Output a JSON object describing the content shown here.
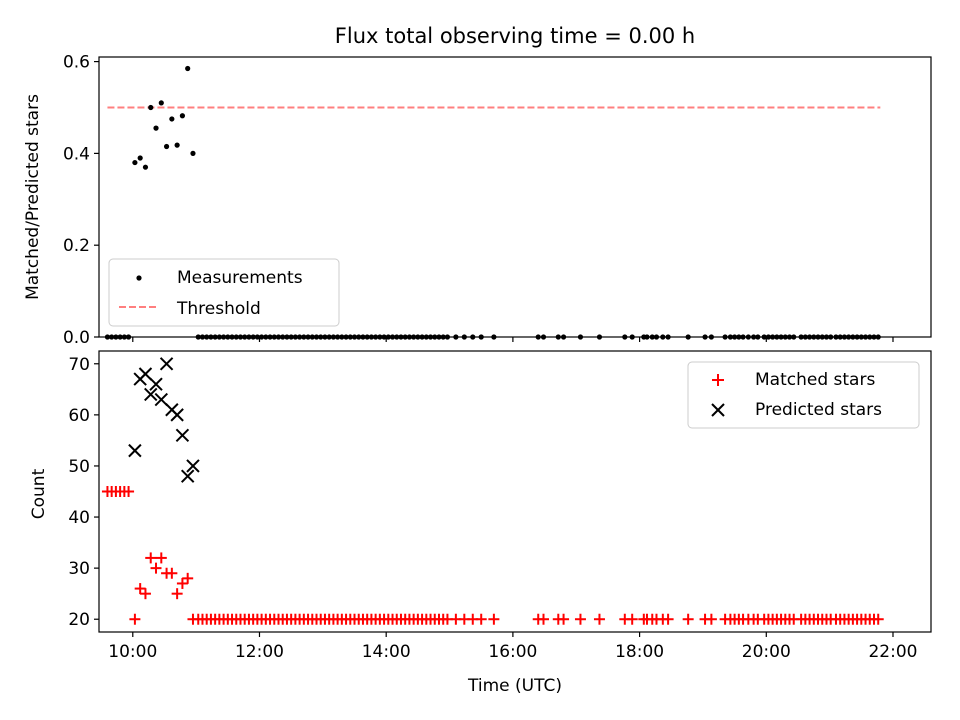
{
  "figure": {
    "title": "Flux total observing time = 0.00 h",
    "xlabel": "Time (UTC)"
  },
  "colors": {
    "measurements": "#000000",
    "threshold": "#ff7f7f",
    "matched": "#ff0000",
    "predicted": "#000000"
  },
  "chart_data": [
    {
      "type": "scatter",
      "panel": "top",
      "ylabel": "Matched/Predicted stars",
      "xlim": [
        "09:28",
        "22:36"
      ],
      "ylim": [
        0,
        0.61
      ],
      "yticks": [
        0.0,
        0.2,
        0.4,
        0.6
      ],
      "ytick_labels": [
        "0.0",
        "0.2",
        "0.4",
        "0.6"
      ],
      "legend": {
        "placement": "lower-left",
        "entries": [
          "Measurements",
          "Threshold"
        ]
      },
      "series": [
        {
          "name": "Measurements",
          "marker": "dot",
          "points": [
            [
              "10:02",
              0.38
            ],
            [
              "10:07",
              0.39
            ],
            [
              "10:12",
              0.37
            ],
            [
              "10:17",
              0.5
            ],
            [
              "10:22",
              0.455
            ],
            [
              "10:27",
              0.51
            ],
            [
              "10:32",
              0.415
            ],
            [
              "10:37",
              0.475
            ],
            [
              "10:42",
              0.418
            ],
            [
              "10:47",
              0.482
            ],
            [
              "10:52",
              0.585
            ],
            [
              "10:57",
              0.4
            ]
          ],
          "zero_times": [
            "09:36",
            "09:40",
            "09:44",
            "09:48",
            "09:52",
            "09:56",
            "11:02",
            "11:06",
            "11:10",
            "11:14",
            "11:18",
            "11:22",
            "11:26",
            "11:30",
            "11:34",
            "11:38",
            "11:42",
            "11:46",
            "11:50",
            "11:54",
            "11:58",
            "12:02",
            "12:06",
            "12:10",
            "12:14",
            "12:18",
            "12:22",
            "12:26",
            "12:30",
            "12:34",
            "12:38",
            "12:42",
            "12:46",
            "12:50",
            "12:54",
            "12:58",
            "13:02",
            "13:06",
            "13:10",
            "13:14",
            "13:18",
            "13:22",
            "13:26",
            "13:30",
            "13:34",
            "13:38",
            "13:42",
            "13:46",
            "13:50",
            "13:54",
            "13:58",
            "14:02",
            "14:06",
            "14:10",
            "14:14",
            "14:18",
            "14:22",
            "14:26",
            "14:30",
            "14:34",
            "14:38",
            "14:42",
            "14:46",
            "14:50",
            "14:54",
            "14:58",
            "15:06",
            "15:14",
            "15:22",
            "15:30",
            "15:42",
            "16:24",
            "16:29",
            "16:43",
            "16:48",
            "17:04",
            "17:22",
            "17:46",
            "17:53",
            "18:04",
            "18:07",
            "18:12",
            "18:16",
            "18:22",
            "18:27",
            "18:46",
            "19:02",
            "19:08",
            "19:21",
            "19:26",
            "19:30",
            "19:34",
            "19:38",
            "19:43",
            "19:48",
            "19:52",
            "19:58",
            "20:02",
            "20:06",
            "20:10",
            "20:14",
            "20:18",
            "20:22",
            "20:26",
            "20:33",
            "20:37",
            "20:41",
            "20:45",
            "20:49",
            "20:53",
            "20:57",
            "21:01",
            "21:06",
            "21:10",
            "21:14",
            "21:18",
            "21:22",
            "21:26",
            "21:30",
            "21:34",
            "21:38",
            "21:42",
            "21:46"
          ]
        },
        {
          "name": "Threshold",
          "marker": "dashed-line",
          "x": [
            "09:36",
            "21:48"
          ],
          "y": [
            0.5,
            0.5
          ]
        }
      ]
    },
    {
      "type": "scatter",
      "panel": "bottom",
      "ylabel": "Count",
      "xlim": [
        "09:28",
        "22:36"
      ],
      "ylim": [
        17.5,
        72.5
      ],
      "yticks": [
        20,
        30,
        40,
        50,
        60,
        70
      ],
      "ytick_labels": [
        "20",
        "30",
        "40",
        "50",
        "60",
        "70"
      ],
      "xticks": [
        "10:00",
        "12:00",
        "14:00",
        "16:00",
        "18:00",
        "20:00",
        "22:00"
      ],
      "xtick_labels": [
        "10:00",
        "12:00",
        "14:00",
        "16:00",
        "18:00",
        "20:00",
        "22:00"
      ],
      "legend": {
        "placement": "upper-right",
        "entries": [
          "Matched stars",
          "Predicted stars"
        ]
      },
      "series": [
        {
          "name": "Matched stars",
          "marker": "plus",
          "points": [
            [
              "09:36",
              45
            ],
            [
              "09:40",
              45
            ],
            [
              "09:44",
              45
            ],
            [
              "09:48",
              45
            ],
            [
              "09:52",
              45
            ],
            [
              "09:56",
              45
            ],
            [
              "10:02",
              20
            ],
            [
              "10:07",
              26
            ],
            [
              "10:12",
              25
            ],
            [
              "10:17",
              32
            ],
            [
              "10:22",
              30
            ],
            [
              "10:27",
              32
            ],
            [
              "10:32",
              29
            ],
            [
              "10:37",
              29
            ],
            [
              "10:42",
              25
            ],
            [
              "10:47",
              27
            ],
            [
              "10:52",
              28
            ],
            [
              "10:57",
              20
            ]
          ],
          "times_at_20": [
            "11:02",
            "11:06",
            "11:10",
            "11:14",
            "11:18",
            "11:22",
            "11:26",
            "11:30",
            "11:34",
            "11:38",
            "11:42",
            "11:46",
            "11:50",
            "11:54",
            "11:58",
            "12:02",
            "12:06",
            "12:10",
            "12:14",
            "12:18",
            "12:22",
            "12:26",
            "12:30",
            "12:34",
            "12:38",
            "12:42",
            "12:46",
            "12:50",
            "12:54",
            "12:58",
            "13:02",
            "13:06",
            "13:10",
            "13:14",
            "13:18",
            "13:22",
            "13:26",
            "13:30",
            "13:34",
            "13:38",
            "13:42",
            "13:46",
            "13:50",
            "13:54",
            "13:58",
            "14:02",
            "14:06",
            "14:10",
            "14:14",
            "14:18",
            "14:22",
            "14:26",
            "14:30",
            "14:34",
            "14:38",
            "14:42",
            "14:46",
            "14:50",
            "14:54",
            "14:58",
            "15:06",
            "15:14",
            "15:22",
            "15:30",
            "15:42",
            "16:24",
            "16:29",
            "16:43",
            "16:48",
            "17:04",
            "17:22",
            "17:46",
            "17:53",
            "18:04",
            "18:07",
            "18:12",
            "18:16",
            "18:22",
            "18:27",
            "18:46",
            "19:02",
            "19:08",
            "19:21",
            "19:26",
            "19:30",
            "19:34",
            "19:38",
            "19:43",
            "19:48",
            "19:52",
            "19:58",
            "20:02",
            "20:06",
            "20:10",
            "20:14",
            "20:18",
            "20:22",
            "20:26",
            "20:33",
            "20:37",
            "20:41",
            "20:45",
            "20:49",
            "20:53",
            "20:57",
            "21:01",
            "21:06",
            "21:10",
            "21:14",
            "21:18",
            "21:22",
            "21:26",
            "21:30",
            "21:34",
            "21:38",
            "21:42",
            "21:46"
          ]
        },
        {
          "name": "Predicted stars",
          "marker": "x",
          "points": [
            [
              "10:02",
              53
            ],
            [
              "10:07",
              67
            ],
            [
              "10:12",
              68
            ],
            [
              "10:17",
              64
            ],
            [
              "10:22",
              66
            ],
            [
              "10:27",
              63
            ],
            [
              "10:32",
              70
            ],
            [
              "10:37",
              61
            ],
            [
              "10:42",
              60
            ],
            [
              "10:47",
              56
            ],
            [
              "10:52",
              48
            ],
            [
              "10:57",
              50
            ]
          ]
        }
      ]
    }
  ]
}
